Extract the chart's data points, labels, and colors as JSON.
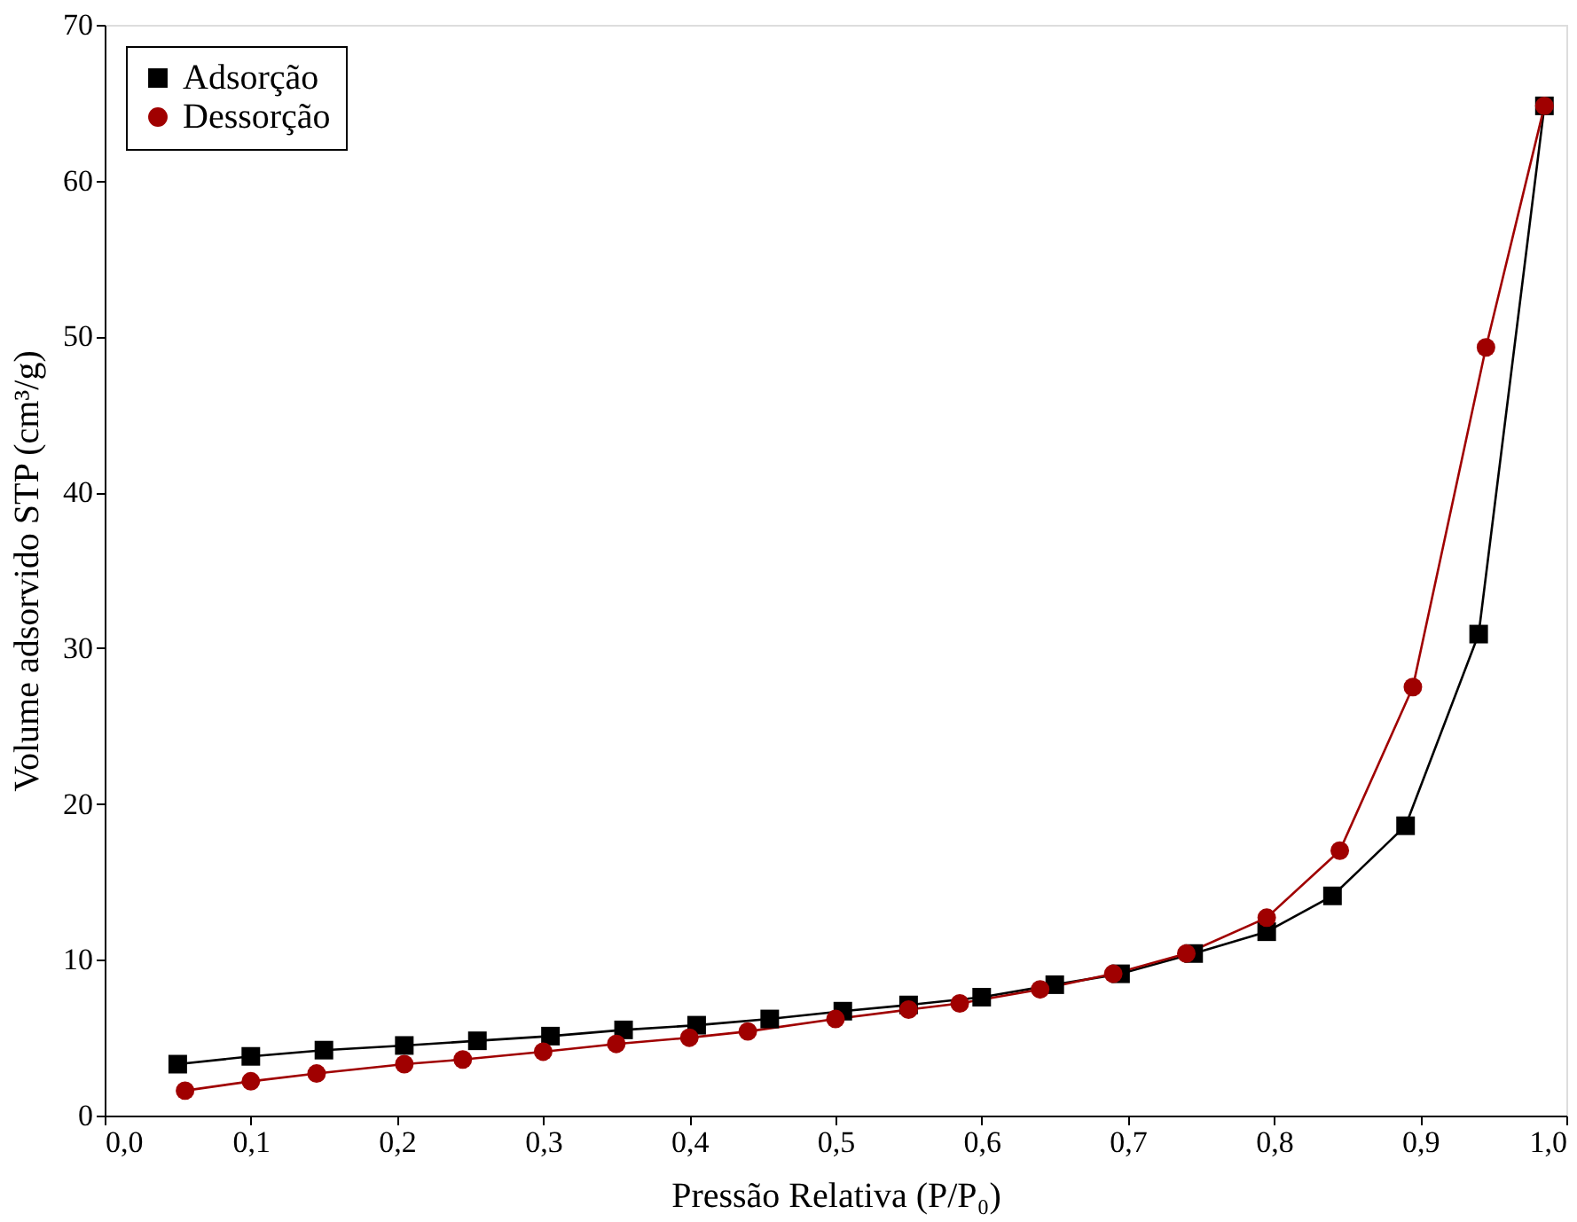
{
  "chart_data": {
    "type": "line",
    "xlabel": "Pressão Relativa (P/P₀)",
    "ylabel": "Volume adsorvido STP (cm³/g)",
    "xlim": [
      0,
      1
    ],
    "ylim": [
      0,
      70
    ],
    "xticks": [
      {
        "value": 0,
        "label": "0,0"
      },
      {
        "value": 0.1,
        "label": "0,1"
      },
      {
        "value": 0.2,
        "label": "0,2"
      },
      {
        "value": 0.3,
        "label": "0,3"
      },
      {
        "value": 0.4,
        "label": "0,4"
      },
      {
        "value": 0.5,
        "label": "0,5"
      },
      {
        "value": 0.6,
        "label": "0,6"
      },
      {
        "value": 0.7,
        "label": "0,7"
      },
      {
        "value": 0.8,
        "label": "0,8"
      },
      {
        "value": 0.9,
        "label": "0,9"
      },
      {
        "value": 1,
        "label": "1,0"
      }
    ],
    "yticks": [
      0,
      10,
      20,
      30,
      40,
      50,
      60,
      70
    ],
    "grid": false,
    "legend": "top left",
    "series": [
      {
        "name": "Adsorção",
        "color": "#000000",
        "marker": "square",
        "x": [
          0.05,
          0.1,
          0.15,
          0.205,
          0.255,
          0.305,
          0.355,
          0.405,
          0.455,
          0.505,
          0.55,
          0.6,
          0.65,
          0.695,
          0.745,
          0.795,
          0.84,
          0.89,
          0.94,
          0.985
        ],
        "values": [
          3.3,
          3.8,
          4.2,
          4.5,
          4.8,
          5.1,
          5.5,
          5.8,
          6.2,
          6.7,
          7.1,
          7.6,
          8.4,
          9.1,
          10.4,
          11.8,
          14.1,
          18.6,
          30.9,
          64.8
        ]
      },
      {
        "name": "Dessorção",
        "color": "#a00000",
        "marker": "circle",
        "x": [
          0.055,
          0.1,
          0.145,
          0.205,
          0.245,
          0.3,
          0.35,
          0.4,
          0.44,
          0.5,
          0.55,
          0.585,
          0.64,
          0.69,
          0.74,
          0.795,
          0.845,
          0.895,
          0.945,
          0.985
        ],
        "values": [
          1.6,
          2.2,
          2.7,
          3.3,
          3.6,
          4.1,
          4.6,
          5.0,
          5.4,
          6.2,
          6.8,
          7.2,
          8.1,
          9.1,
          10.4,
          12.7,
          17.0,
          27.5,
          49.3,
          64.8
        ]
      }
    ]
  }
}
